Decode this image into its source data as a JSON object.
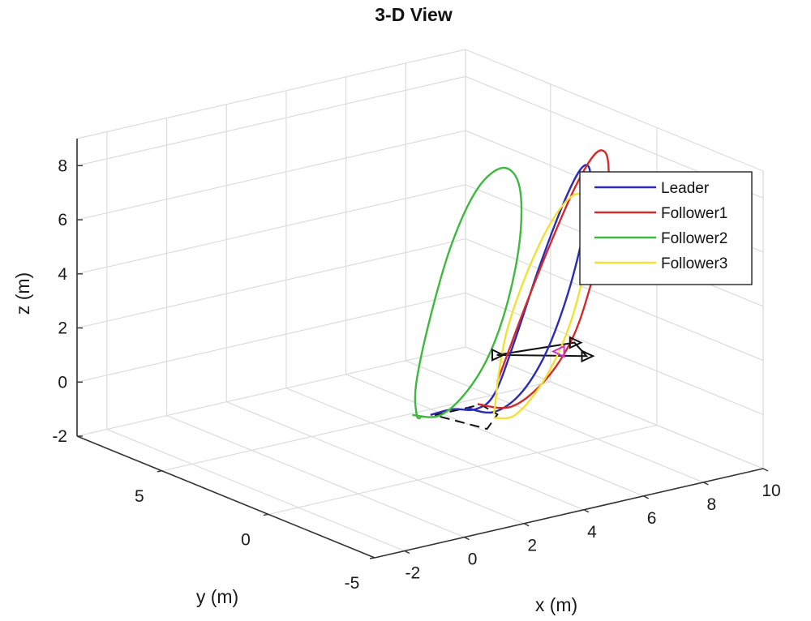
{
  "chart_data": {
    "type": "line",
    "title": "3-D View",
    "xlabel": "x (m)",
    "ylabel": "y (m)",
    "zlabel": "z (m)",
    "xlim": [
      -3,
      10
    ],
    "ylim": [
      -5,
      9
    ],
    "zlim": [
      -2,
      9
    ],
    "xticks": [
      "-2",
      "0",
      "2",
      "4",
      "6",
      "8",
      "10"
    ],
    "yticks": [
      "-5",
      "0",
      "5"
    ],
    "zticks": [
      "-2",
      "0",
      "2",
      "4",
      "6",
      "8"
    ],
    "grid": true,
    "legend_position": "top-right",
    "series": [
      {
        "name": "Leader",
        "color": "#2b2bb4",
        "points": [
          [
            4.0,
            0.5,
            0
          ],
          [
            4.87,
            0.5,
            -0.38
          ],
          [
            5.74,
            0.5,
            0.02
          ],
          [
            6.54,
            0.5,
            1.15
          ],
          [
            7.22,
            0.5,
            2.86
          ],
          [
            7.76,
            0.5,
            4.84
          ],
          [
            8.08,
            0.5,
            6.66
          ],
          [
            8.1,
            0.5,
            7.81
          ],
          [
            7.79,
            0.5,
            7.84
          ],
          [
            7.18,
            0.5,
            6.62
          ],
          [
            6.38,
            0.5,
            4.47
          ],
          [
            5.59,
            0.5,
            2.05
          ],
          [
            4.92,
            0.5,
            0.28
          ],
          [
            4.3,
            0.5,
            -0.12
          ],
          [
            3.52,
            0.5,
            0.07
          ],
          [
            2.78,
            0.5,
            0.05
          ]
        ]
      },
      {
        "name": "Follower1",
        "color": "#d42a2a",
        "points": [
          [
            4.0,
            0.0,
            0.3
          ],
          [
            5.13,
            0.0,
            -0.08
          ],
          [
            6.25,
            0.0,
            0.6
          ],
          [
            7.17,
            0.0,
            1.92
          ],
          [
            7.78,
            0.0,
            3.72
          ],
          [
            8.2,
            0.0,
            5.62
          ],
          [
            8.38,
            0.0,
            7.34
          ],
          [
            8.31,
            0.0,
            8.44
          ],
          [
            7.93,
            0.0,
            8.55
          ],
          [
            7.27,
            0.0,
            7.5
          ],
          [
            6.44,
            0.0,
            5.62
          ],
          [
            5.58,
            0.0,
            3.46
          ],
          [
            4.92,
            0.0,
            1.67
          ],
          [
            4.66,
            0.0,
            0.97
          ]
        ]
      },
      {
        "name": "Follower2",
        "color": "#3fb83f",
        "points": [
          [
            2.1,
            0.4,
            0.25
          ],
          [
            3.03,
            0.4,
            0.0
          ],
          [
            3.96,
            0.4,
            0.7
          ],
          [
            4.75,
            0.4,
            2.0
          ],
          [
            5.38,
            0.4,
            3.98
          ],
          [
            5.73,
            0.4,
            6.17
          ],
          [
            5.66,
            0.4,
            7.91
          ],
          [
            5.12,
            0.4,
            8.62
          ],
          [
            4.28,
            0.4,
            8.06
          ],
          [
            3.42,
            0.4,
            6.24
          ],
          [
            2.7,
            0.4,
            3.7
          ],
          [
            2.23,
            0.4,
            1.36
          ],
          [
            2.25,
            0.4,
            0.21
          ],
          [
            2.4,
            0.4,
            0.08
          ]
        ]
      },
      {
        "name": "Follower3",
        "color": "#f0e234",
        "points": [
          [
            4.9,
            0.5,
            -0.6
          ],
          [
            5.62,
            0.5,
            -0.67
          ],
          [
            6.52,
            0.5,
            0.28
          ],
          [
            7.33,
            0.5,
            1.89
          ],
          [
            7.88,
            0.5,
            3.85
          ],
          [
            8.11,
            0.5,
            5.62
          ],
          [
            7.98,
            0.5,
            6.75
          ],
          [
            7.48,
            0.5,
            6.92
          ],
          [
            6.74,
            0.5,
            6.02
          ],
          [
            5.98,
            0.5,
            4.41
          ],
          [
            5.34,
            0.5,
            2.51
          ],
          [
            5.05,
            0.5,
            0.86
          ],
          [
            4.95,
            0.5,
            -0.1
          ],
          [
            4.9,
            0.5,
            -0.45
          ]
        ]
      }
    ],
    "formation": [
      {
        "style": "dashed",
        "color": "#111111",
        "points": [
          [
            2.85,
            0.4,
            0.05
          ],
          [
            4.4,
            0.4,
            0.05
          ],
          [
            4.95,
            0.4,
            -0.45
          ],
          [
            4.6,
            0.4,
            -0.9
          ],
          [
            2.85,
            0.4,
            0.05
          ]
        ]
      },
      {
        "style": "solid",
        "color": "#111111",
        "points": [
          [
            5.0,
            0.5,
            1.7
          ],
          [
            7.6,
            0.5,
            1.5
          ],
          [
            8.0,
            0.5,
            0.9
          ],
          [
            5.0,
            0.5,
            1.7
          ]
        ]
      }
    ],
    "markers": [
      {
        "shape": "triangle-right",
        "color": "#111111",
        "point": [
          5.0,
          0.5,
          1.7
        ]
      },
      {
        "shape": "triangle-right",
        "color": "#111111",
        "point": [
          7.6,
          0.5,
          1.5
        ]
      },
      {
        "shape": "triangle-right",
        "color": "#111111",
        "point": [
          8.0,
          0.5,
          0.9
        ]
      },
      {
        "shape": "triangle-left",
        "color": "#cc33cc",
        "point": [
          7.1,
          0.5,
          1.3
        ]
      }
    ]
  }
}
